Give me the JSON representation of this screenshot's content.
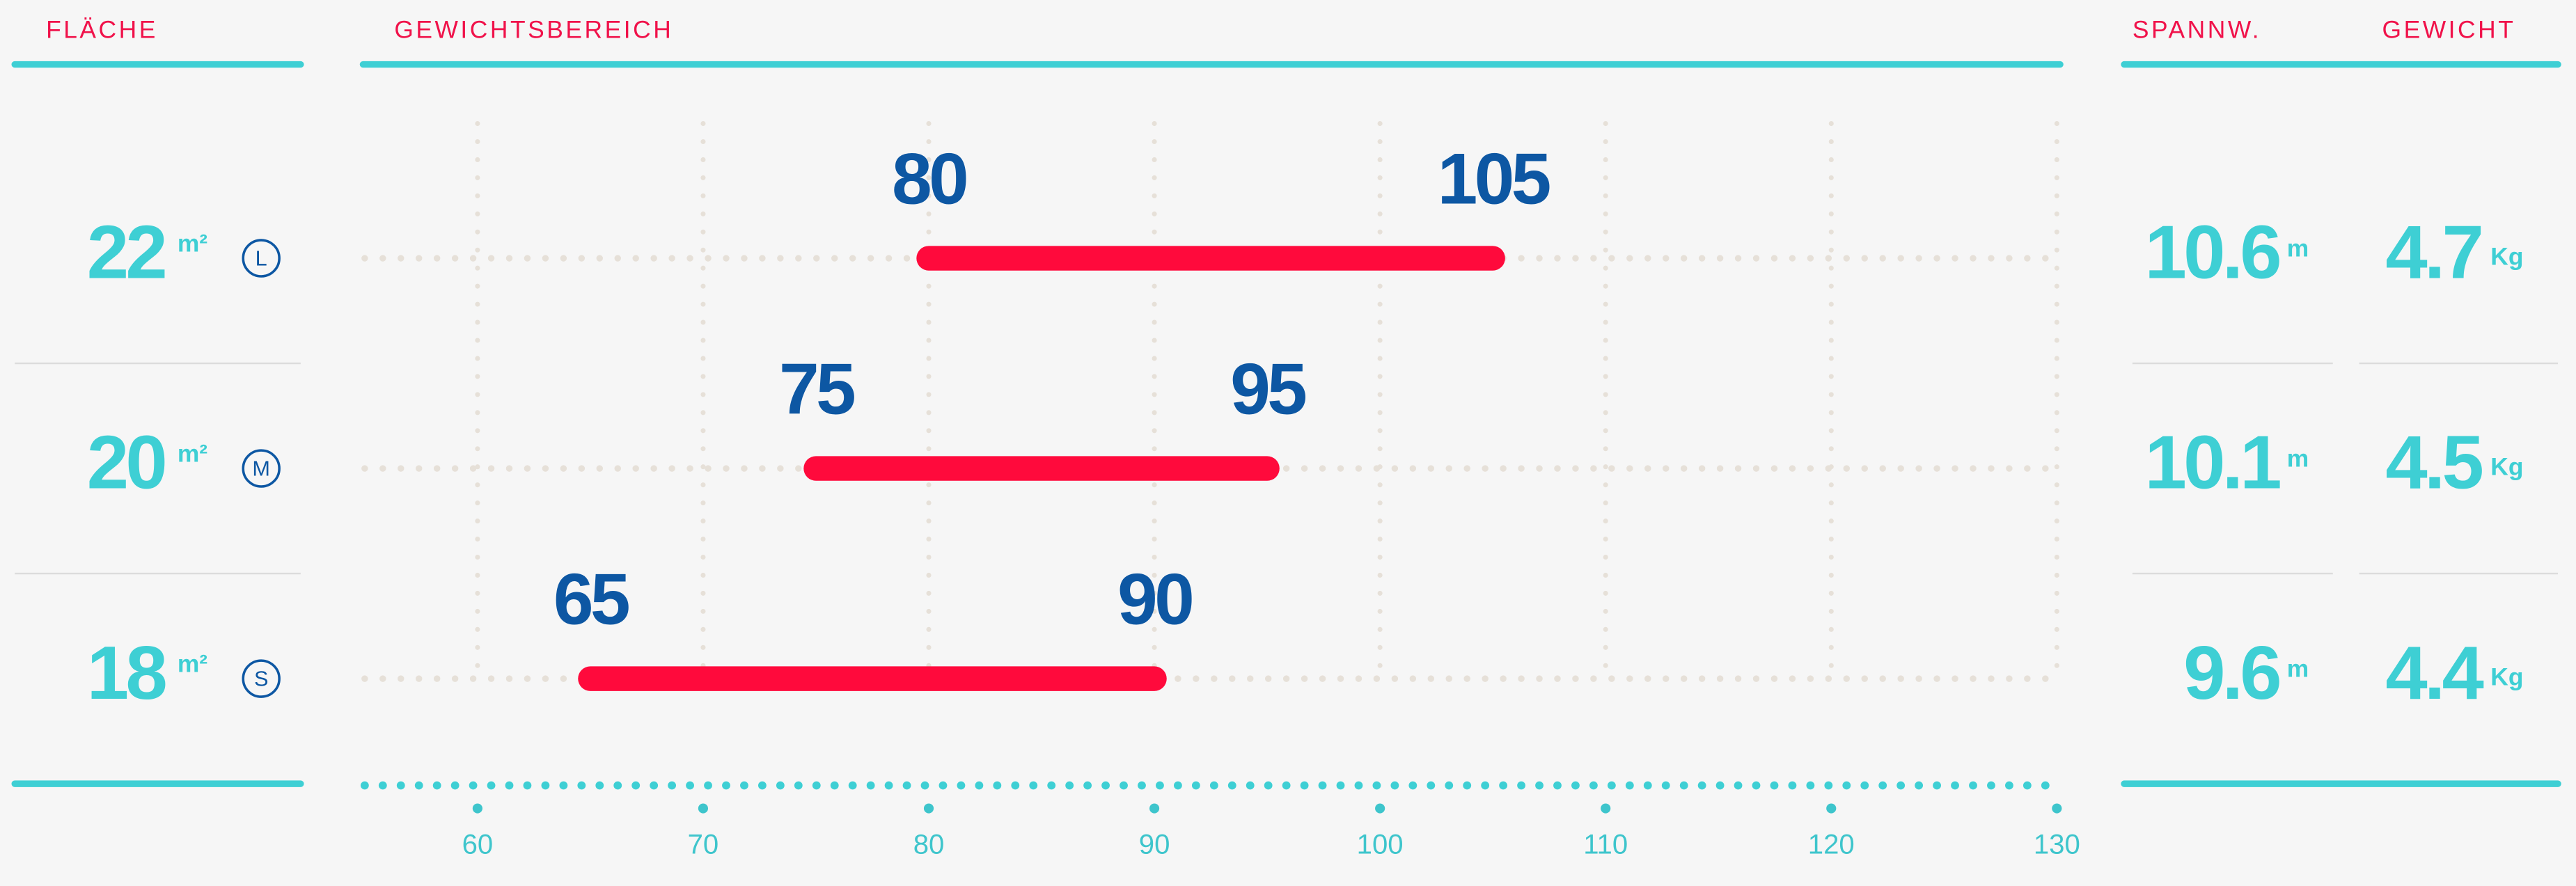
{
  "headers": {
    "area": "FLÄCHE",
    "span": "SPANNW.",
    "weight": "GEWICHT"
  },
  "rows": [
    {
      "area": 22,
      "area_unit": "m²",
      "size": "L",
      "span": 10.6,
      "span_unit": "m",
      "weight": 4.7,
      "weight_unit": "Kg"
    },
    {
      "area": 20,
      "area_unit": "m²",
      "size": "M",
      "span": 10.1,
      "span_unit": "m",
      "weight": 4.5,
      "weight_unit": "Kg"
    },
    {
      "area": 18,
      "area_unit": "m²",
      "size": "S",
      "span": 9.6,
      "span_unit": "m",
      "weight": 4.4,
      "weight_unit": "Kg"
    }
  ],
  "chart_data": {
    "type": "range",
    "title": "GEWICHTSBEREICH",
    "low": [
      80,
      75,
      65
    ],
    "high": [
      105,
      95,
      90
    ],
    "color": "#ff0a3c",
    "xlim": [
      55,
      130
    ],
    "xticks": [
      60,
      70,
      80,
      90,
      100,
      110,
      120,
      130
    ],
    "grid": true
  }
}
